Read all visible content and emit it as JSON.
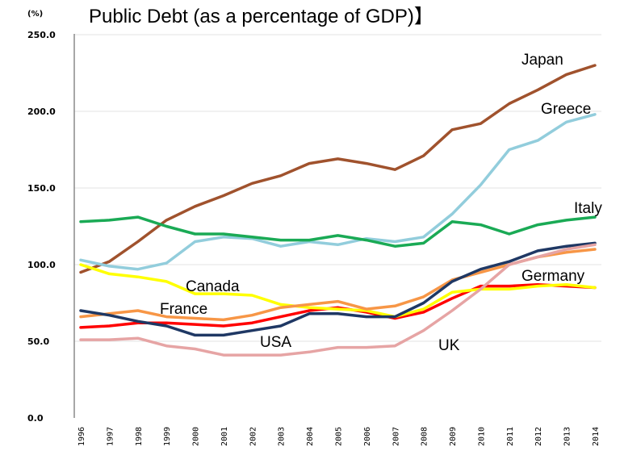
{
  "chart_data": {
    "type": "line",
    "title": "Public Debt (as a percentage of GDP)】",
    "unit_label": "(%)",
    "ylim": [
      0,
      250
    ],
    "yticks": [
      "0.0",
      "50.0",
      "100.0",
      "150.0",
      "200.0",
      "250.0"
    ],
    "ytick_values": [
      0,
      50,
      100,
      150,
      200,
      250
    ],
    "categories": [
      "1996",
      "1997",
      "1998",
      "1999",
      "2000",
      "2001",
      "2002",
      "2003",
      "2004",
      "2005",
      "2006",
      "2007",
      "2008",
      "2009",
      "2010",
      "2011",
      "2012",
      "2013",
      "2014"
    ],
    "grid": "horizontal",
    "legend": "inline labels",
    "series": [
      {
        "name": "Japan",
        "color": "#a0522d",
        "values": [
          95,
          102,
          115,
          129,
          138,
          145,
          153,
          158,
          166,
          169,
          166,
          162,
          171,
          188,
          192,
          205,
          214,
          224,
          230
        ]
      },
      {
        "name": "Greece",
        "color": "#92cddc",
        "values": [
          103,
          99,
          97,
          101,
          115,
          118,
          117,
          112,
          115,
          113,
          117,
          115,
          118,
          133,
          152,
          175,
          181,
          193,
          198
        ]
      },
      {
        "name": "Italy",
        "color": "#1aaa55",
        "values": [
          128,
          129,
          131,
          125,
          120,
          120,
          118,
          116,
          116,
          119,
          116,
          112,
          114,
          128,
          126,
          120,
          126,
          129,
          131
        ]
      },
      {
        "name": "Germany",
        "color": "#ff0000",
        "values": [
          59,
          60,
          62,
          62,
          61,
          60,
          62,
          66,
          70,
          72,
          69,
          65,
          69,
          78,
          86,
          86,
          87,
          86,
          85
        ]
      },
      {
        "name": "Canada",
        "color": "#ffff00",
        "values": [
          100,
          94,
          92,
          89,
          81,
          81,
          80,
          74,
          72,
          71,
          70,
          66,
          71,
          82,
          84,
          84,
          86,
          87,
          85
        ]
      },
      {
        "name": "France",
        "color": "#f79646",
        "values": [
          66,
          68,
          70,
          66,
          65,
          64,
          67,
          72,
          74,
          76,
          71,
          73,
          79,
          90,
          95,
          100,
          105,
          108,
          110
        ]
      },
      {
        "name": "USA",
        "color": "#1f3864",
        "values": [
          70,
          67,
          63,
          60,
          54,
          54,
          57,
          60,
          68,
          68,
          66,
          66,
          75,
          89,
          97,
          102,
          109,
          112,
          114
        ]
      },
      {
        "name": "UK",
        "color": "#e6a4a4",
        "values": [
          51,
          51,
          52,
          47,
          45,
          41,
          41,
          41,
          43,
          46,
          46,
          47,
          57,
          70,
          84,
          100,
          105,
          110,
          113
        ]
      }
    ]
  }
}
